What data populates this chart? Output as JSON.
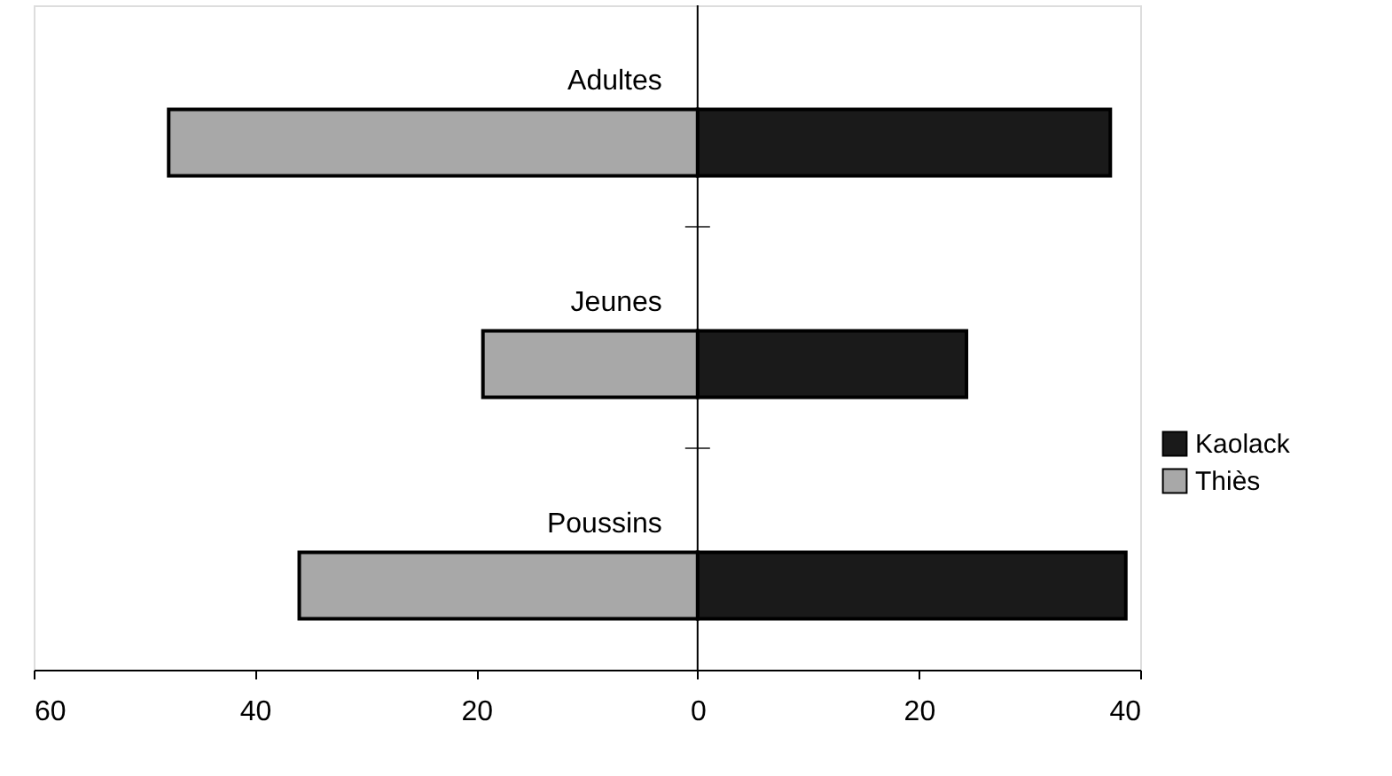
{
  "chart_data": {
    "type": "bar",
    "orientation": "horizontal",
    "categories": [
      "Adultes",
      "Jeunes",
      "Poussins"
    ],
    "series": [
      {
        "name": "Kaolack",
        "color": "#1a1a1a",
        "values": [
          37.3,
          24.3,
          38.7
        ]
      },
      {
        "name": "Thiès",
        "color": "#a8a8a8",
        "values": [
          -47.8,
          -19.4,
          -36
        ]
      }
    ],
    "xlim": [
      -60,
      40
    ],
    "xticks": [
      {
        "value": -60,
        "label": "60"
      },
      {
        "value": -40,
        "label": "40"
      },
      {
        "value": -20,
        "label": "20"
      },
      0,
      20,
      40
    ],
    "stacked": true,
    "grid": false,
    "legend": "right"
  }
}
